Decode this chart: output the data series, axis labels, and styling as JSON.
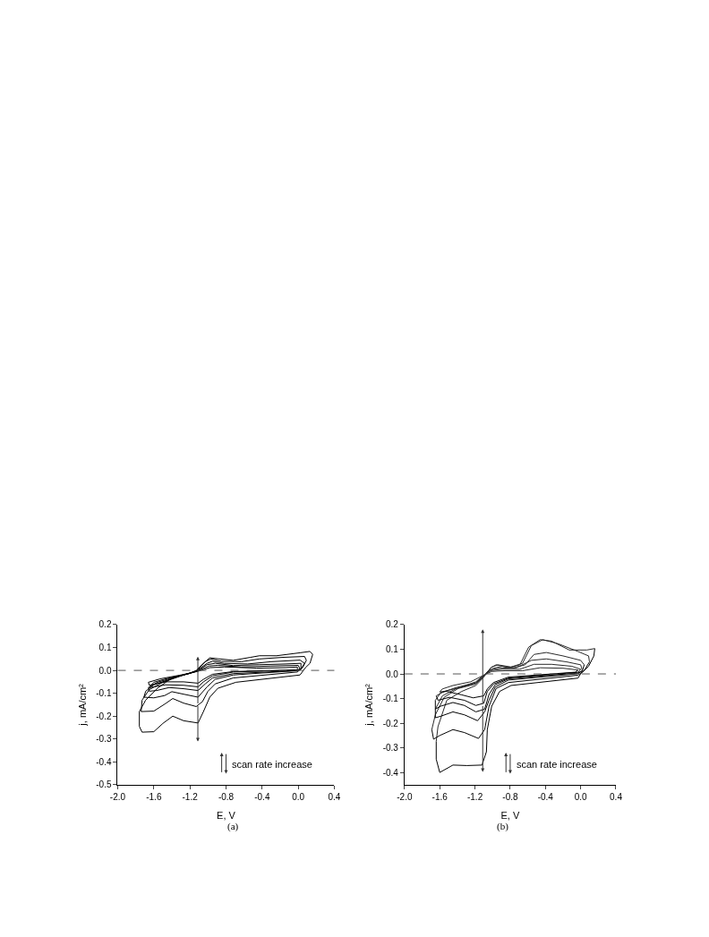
{
  "chart_data": [
    {
      "type": "line",
      "xlabel": "E, V",
      "ylabel": "j, mA/cm²",
      "annotations": [
        "scan rate increase",
        "(a)"
      ],
      "xlim": [
        -2.0,
        0.4
      ],
      "xticks": [
        {
          "value": -2.0,
          "label": "-2.0"
        },
        {
          "value": -1.6,
          "label": "-1.6"
        },
        {
          "value": -1.2,
          "label": "-1.2"
        },
        {
          "value": -0.8,
          "label": "-0.8"
        },
        {
          "value": -0.4,
          "label": "-0.4"
        },
        {
          "value": 0.0,
          "label": "0.0"
        },
        0.4
      ],
      "ylim": [
        -0.5,
        0.2
      ],
      "yticks": [
        -0.5,
        -0.4,
        -0.3,
        -0.2,
        -0.1,
        {
          "value": 0.0,
          "label": "0.0"
        },
        0.1,
        0.2
      ],
      "marker": "none",
      "line_style": "solid",
      "ref_lines": [
        {
          "axis": "y",
          "value": 0.0,
          "line_style": "dashed",
          "color": "#555555"
        }
      ],
      "series": [
        {
          "color": "#000000",
          "x": [
            0.16,
            0.13,
            0.08,
            0.02,
            -0.69,
            -0.89,
            -0.98,
            -1.05,
            -1.11,
            -1.27,
            -1.39,
            -1.5,
            -1.6,
            -1.73,
            -1.76,
            -1.76
          ],
          "values": [
            0.07,
            0.031,
            0.012,
            -0.02,
            -0.052,
            -0.078,
            -0.117,
            -0.18,
            -0.23,
            -0.22,
            -0.2,
            -0.232,
            -0.268,
            -0.27,
            -0.245,
            -0.18
          ]
        },
        {
          "color": "#000000",
          "x": [
            -1.76,
            -1.69,
            -1.56,
            -1.4,
            -1.21,
            -1.13,
            -1.05,
            -0.98,
            -0.89,
            -0.72,
            -0.53,
            -0.43,
            -0.24,
            0.02,
            0.13,
            0.16
          ],
          "values": [
            -0.18,
            -0.13,
            -0.078,
            -0.033,
            -0.014,
            0.0,
            0.031,
            0.055,
            0.051,
            0.044,
            0.057,
            0.064,
            0.064,
            0.077,
            0.083,
            0.07
          ]
        },
        {
          "color": "#000000",
          "x": [
            0.09,
            0.05,
            -0.01,
            -0.72,
            -0.92,
            -1.0,
            -1.06,
            -1.13,
            -1.27,
            -1.39,
            -1.47,
            -1.6,
            -1.74
          ],
          "values": [
            0.044,
            0.013,
            -0.007,
            -0.033,
            -0.059,
            -0.091,
            -0.136,
            -0.158,
            -0.143,
            -0.123,
            -0.145,
            -0.178,
            -0.18
          ]
        },
        {
          "color": "#000000",
          "x": [
            -1.74,
            -1.73,
            -1.65,
            -1.5,
            -1.27,
            -1.13,
            -1.03,
            -0.97,
            -0.85,
            -0.63,
            -0.43,
            -0.17,
            0.07,
            0.09
          ],
          "values": [
            -0.18,
            -0.13,
            -0.084,
            -0.052,
            -0.02,
            -0.003,
            0.038,
            0.05,
            0.04,
            0.038,
            0.05,
            0.057,
            0.061,
            0.044
          ]
        },
        {
          "color": "#000000",
          "x": [
            0.07,
            0.03,
            -0.01,
            -0.72,
            -0.92,
            -1.01,
            -1.11,
            -1.27,
            -1.4,
            -1.48,
            -1.6,
            -1.71
          ],
          "values": [
            0.031,
            0.006,
            -0.001,
            -0.02,
            -0.039,
            -0.072,
            -0.117,
            -0.104,
            -0.093,
            -0.11,
            -0.12,
            -0.117
          ]
        },
        {
          "color": "#000000",
          "x": [
            -1.71,
            -1.69,
            -1.6,
            -1.43,
            -1.24,
            -1.13,
            -1.01,
            -0.95,
            -0.82,
            -0.56,
            -0.3,
            0.02,
            0.07
          ],
          "values": [
            -0.117,
            -0.091,
            -0.063,
            -0.04,
            -0.016,
            -0.003,
            0.031,
            0.04,
            0.031,
            0.028,
            0.038,
            0.045,
            0.031
          ]
        },
        {
          "color": "#000000",
          "x": [
            0.03,
            0.03,
            -0.01,
            -0.72,
            -0.95,
            -1.03,
            -1.11,
            -1.27,
            -1.43,
            -1.57,
            -1.65,
            -1.66
          ],
          "values": [
            0.031,
            0.006,
            -0.001,
            -0.014,
            -0.033,
            -0.059,
            -0.088,
            -0.08,
            -0.075,
            -0.088,
            -0.091,
            -0.075
          ]
        },
        {
          "color": "#000000",
          "x": [
            -1.66,
            -1.56,
            -1.4,
            -1.21,
            -1.12,
            -1.01,
            -0.92,
            -0.72,
            -0.43,
            -0.14,
            0.03
          ],
          "values": [
            -0.075,
            -0.052,
            -0.033,
            -0.014,
            -0.003,
            0.025,
            0.031,
            0.021,
            0.025,
            0.028,
            0.031
          ]
        },
        {
          "color": "#000000",
          "x": [
            0.02,
            -0.01,
            -0.72,
            -0.95,
            -1.05,
            -1.11,
            -1.27,
            -1.47,
            -1.6,
            -1.65
          ],
          "values": [
            0.006,
            0.002,
            -0.007,
            -0.024,
            -0.05,
            -0.072,
            -0.065,
            -0.063,
            -0.072,
            -0.075
          ]
        },
        {
          "color": "#000000",
          "x": [
            -1.65,
            -1.6,
            -1.43,
            -1.21,
            -1.12,
            -0.99,
            -0.89,
            -0.63,
            -0.3,
            0.0,
            0.02
          ],
          "values": [
            -0.075,
            -0.052,
            -0.033,
            -0.014,
            -0.003,
            0.019,
            0.022,
            0.015,
            0.019,
            0.022,
            0.006
          ]
        },
        {
          "color": "#000000",
          "x": [
            -0.01,
            -0.01,
            -0.72,
            -0.95,
            -1.05,
            -1.11,
            -1.27,
            -1.47,
            -1.65,
            -1.66
          ],
          "values": [
            0.015,
            0.002,
            -0.005,
            -0.017,
            -0.039,
            -0.056,
            -0.05,
            -0.05,
            -0.065,
            -0.052
          ]
        },
        {
          "color": "#000000",
          "x": [
            -1.66,
            -1.53,
            -1.3,
            -1.12,
            -0.98,
            -0.82,
            -0.46,
            -0.14,
            -0.01
          ],
          "values": [
            -0.052,
            -0.037,
            -0.02,
            -0.005,
            0.012,
            0.015,
            0.01,
            0.012,
            0.015
          ]
        }
      ]
    },
    {
      "type": "line",
      "xlabel": "E, V",
      "ylabel": "j, mA/cm²",
      "annotations": [
        "scan rate increase",
        "(b)"
      ],
      "xlim": [
        -2.0,
        0.4
      ],
      "xticks": [
        {
          "value": -2.0,
          "label": "-2.0"
        },
        {
          "value": -1.6,
          "label": "-1.6"
        },
        {
          "value": -1.2,
          "label": "-1.2"
        },
        {
          "value": -0.8,
          "label": "-0.8"
        },
        {
          "value": -0.4,
          "label": "-0.4"
        },
        {
          "value": 0.0,
          "label": "0.0"
        },
        0.4
      ],
      "ylim": [
        -0.45,
        0.2
      ],
      "yticks": [
        -0.4,
        -0.3,
        -0.2,
        -0.1,
        {
          "value": 0.0,
          "label": "0.0"
        },
        0.1,
        0.2
      ],
      "marker": "none",
      "line_style": "solid",
      "ref_lines": [
        {
          "axis": "y",
          "value": 0.0,
          "line_style": "dashed",
          "color": "#555555"
        }
      ],
      "series": [
        {
          "color": "#000000",
          "x": [
            0.16,
            0.15,
            0.09,
            0.0,
            -0.03,
            -0.79,
            -0.92,
            -1.01,
            -1.06,
            -1.07,
            -1.12,
            -1.29,
            -1.45,
            -1.6,
            -1.64,
            -1.64
          ],
          "values": [
            0.103,
            0.073,
            0.031,
            0.001,
            -0.017,
            -0.047,
            -0.071,
            -0.131,
            -0.226,
            -0.316,
            -0.37,
            -0.372,
            -0.37,
            -0.4,
            -0.346,
            -0.274
          ]
        },
        {
          "color": "#2a2a2a",
          "x": [
            -1.64,
            -1.62,
            -1.52,
            -1.35,
            -1.19,
            -1.11,
            -1.07,
            -1.02,
            -0.96,
            -0.82,
            -0.69,
            -0.59,
            -0.46,
            -0.33,
            -0.13,
            0.07,
            0.16
          ],
          "values": [
            -0.274,
            -0.214,
            -0.107,
            -0.071,
            -0.047,
            -0.017,
            0.001,
            0.025,
            0.037,
            0.025,
            0.037,
            0.109,
            0.139,
            0.133,
            0.097,
            0.097,
            0.103
          ]
        },
        {
          "color": "#000000",
          "x": [
            0.1,
            0.04,
            -0.03,
            -0.82,
            -0.96,
            -1.04,
            -1.09,
            -1.16,
            -1.32,
            -1.45,
            -1.6,
            -1.67,
            -1.69
          ],
          "values": [
            0.049,
            0.013,
            -0.005,
            -0.035,
            -0.059,
            -0.131,
            -0.226,
            -0.262,
            -0.238,
            -0.226,
            -0.25,
            -0.265,
            -0.226
          ]
        },
        {
          "color": "#2a2a2a",
          "x": [
            -1.69,
            -1.65,
            -1.55,
            -1.39,
            -1.19,
            -1.11,
            -1.07,
            -1.01,
            -0.94,
            -0.79,
            -0.66,
            -0.56,
            -0.43,
            -0.26,
            -0.03,
            0.09,
            0.1
          ],
          "values": [
            -0.226,
            -0.166,
            -0.095,
            -0.059,
            -0.041,
            -0.013,
            0.004,
            0.028,
            0.037,
            0.028,
            0.043,
            0.115,
            0.139,
            0.123,
            0.091,
            0.073,
            0.049
          ]
        },
        {
          "color": "#000000",
          "x": [
            0.04,
            0.02,
            -0.03,
            -0.82,
            -0.97,
            -1.04,
            -1.09,
            -1.17,
            -1.32,
            -1.45,
            -1.59,
            -1.65,
            -1.65
          ],
          "values": [
            0.037,
            0.013,
            0.001,
            -0.025,
            -0.053,
            -0.107,
            -0.154,
            -0.19,
            -0.166,
            -0.154,
            -0.172,
            -0.178,
            -0.143
          ]
        },
        {
          "color": "#2a2a2a",
          "x": [
            -1.65,
            -1.57,
            -1.42,
            -1.19,
            -1.1,
            -1.06,
            -0.99,
            -0.89,
            -0.76,
            -0.63,
            -0.53,
            -0.39,
            -0.2,
            0.0,
            0.04
          ],
          "values": [
            -0.143,
            -0.089,
            -0.061,
            -0.037,
            -0.008,
            0.007,
            0.023,
            0.031,
            0.025,
            0.037,
            0.079,
            0.087,
            0.073,
            0.055,
            0.037
          ]
        },
        {
          "color": "#000000",
          "x": [
            0.02,
            -0.03,
            -0.82,
            -0.97,
            -1.04,
            -1.09,
            -1.19,
            -1.32,
            -1.45,
            -1.59,
            -1.65,
            -1.65
          ],
          "values": [
            0.013,
            0.004,
            -0.02,
            -0.044,
            -0.083,
            -0.143,
            -0.154,
            -0.128,
            -0.116,
            -0.131,
            -0.143,
            -0.107
          ]
        },
        {
          "color": "#2a2a2a",
          "x": [
            -1.65,
            -1.59,
            -1.42,
            -1.19,
            -1.1,
            -1.04,
            -0.92,
            -0.73,
            -0.56,
            -0.39,
            -0.16,
            0.0,
            0.02
          ],
          "values": [
            -0.107,
            -0.077,
            -0.056,
            -0.035,
            -0.006,
            0.016,
            0.023,
            0.025,
            0.055,
            0.061,
            0.049,
            0.037,
            0.013
          ]
        },
        {
          "color": "#000000",
          "x": [
            0.0,
            -0.03,
            -0.82,
            -0.99,
            -1.06,
            -1.1,
            -1.19,
            -1.32,
            -1.49,
            -1.62,
            -1.64
          ],
          "values": [
            0.019,
            0.007,
            -0.017,
            -0.041,
            -0.071,
            -0.119,
            -0.128,
            -0.107,
            -0.095,
            -0.107,
            -0.089
          ]
        },
        {
          "color": "#2a2a2a",
          "x": [
            -1.64,
            -1.55,
            -1.35,
            -1.19,
            -1.1,
            -1.02,
            -0.89,
            -0.69,
            -0.53,
            -0.33,
            -0.1,
            0.0
          ],
          "values": [
            -0.089,
            -0.071,
            -0.053,
            -0.032,
            -0.005,
            0.013,
            0.019,
            0.019,
            0.039,
            0.039,
            0.031,
            0.019
          ]
        },
        {
          "color": "#000000",
          "x": [
            -0.03,
            -0.06,
            -0.82,
            -0.99,
            -1.06,
            -1.1,
            -1.22,
            -1.35,
            -1.52,
            -1.6
          ],
          "values": [
            0.016,
            0.007,
            -0.013,
            -0.035,
            -0.061,
            -0.089,
            -0.097,
            -0.085,
            -0.071,
            -0.073
          ]
        },
        {
          "color": "#2a2a2a",
          "x": [
            -1.6,
            -1.57,
            -1.45,
            -1.25,
            -1.1,
            -1.01,
            -0.86,
            -0.66,
            -0.46,
            -0.2,
            -0.03
          ],
          "values": [
            -0.073,
            -0.061,
            -0.047,
            -0.032,
            -0.005,
            0.01,
            0.013,
            0.013,
            0.025,
            0.023,
            0.016
          ]
        }
      ]
    }
  ]
}
